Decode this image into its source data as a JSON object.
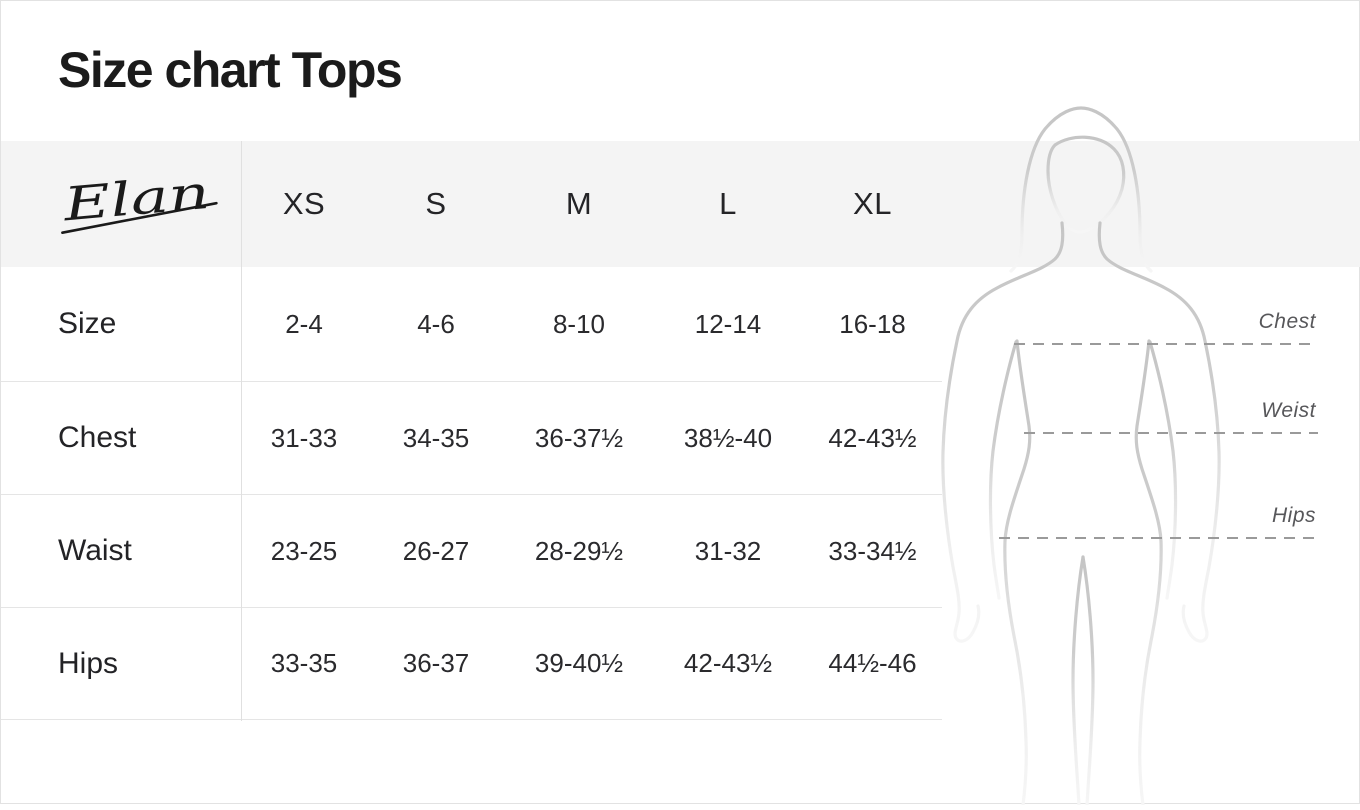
{
  "title": "Size chart Tops",
  "brand": {
    "name": "Elan"
  },
  "chart_data": {
    "type": "table",
    "title": "Size chart Tops",
    "columns": [
      "XS",
      "S",
      "M",
      "L",
      "XL"
    ],
    "rows": [
      {
        "label": "Size",
        "values": [
          "2-4",
          "4-6",
          "8-10",
          "12-14",
          "16-18"
        ]
      },
      {
        "label": "Chest",
        "values": [
          "31-33",
          "34-35",
          "36-37½",
          "38½-40",
          "42-43½"
        ]
      },
      {
        "label": "Waist",
        "values": [
          "23-25",
          "26-27",
          "28-29½",
          "31-32",
          "33-34½"
        ]
      },
      {
        "label": "Hips",
        "values": [
          "33-35",
          "36-37",
          "39-40½",
          "42-43½",
          "44½-46"
        ]
      }
    ]
  },
  "diagram": {
    "figure": "female-body-outline",
    "measurements": [
      {
        "label": "Chest"
      },
      {
        "label": "Weist"
      },
      {
        "label": "Hips"
      }
    ]
  },
  "colors": {
    "header_band": "#f4f4f4",
    "grid_line": "#e5e5e5",
    "text": "#242427",
    "measure_label": "#57575a",
    "dash_line": "#9a9a9a",
    "silhouette_stroke": "#c6c6c6"
  }
}
